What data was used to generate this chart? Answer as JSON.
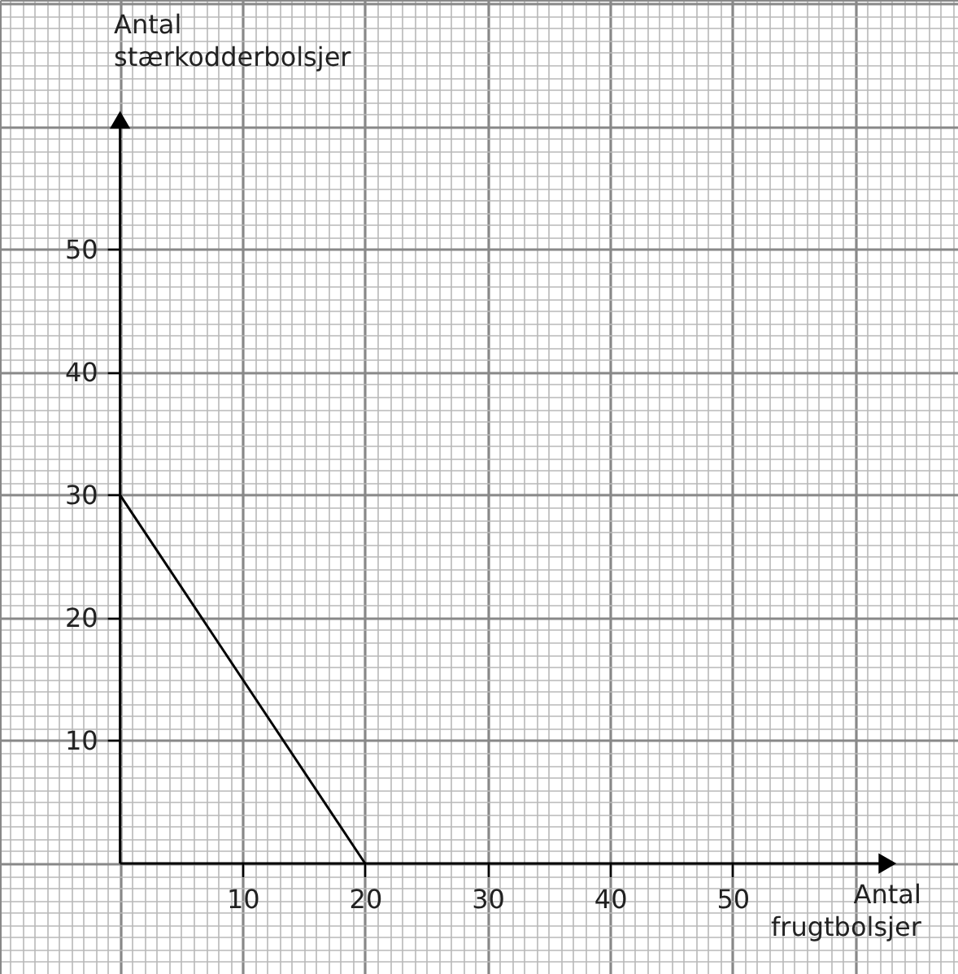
{
  "chart_data": {
    "type": "line",
    "xlabel": "Antal\nfrugtbolsjer",
    "ylabel": "Antal\nstærkodderbolsjer",
    "x": [
      0,
      20
    ],
    "series": [
      {
        "color": "#000000",
        "values": [
          30,
          0
        ]
      }
    ],
    "xlim": [
      -9.8,
      68.4
    ],
    "ylim": [
      -9,
      70.3
    ],
    "xticks": [
      10,
      20,
      30,
      40,
      50
    ],
    "yticks": [
      10,
      20,
      30,
      40,
      50
    ],
    "grid": true,
    "marker": "none",
    "line_style": "solid"
  }
}
